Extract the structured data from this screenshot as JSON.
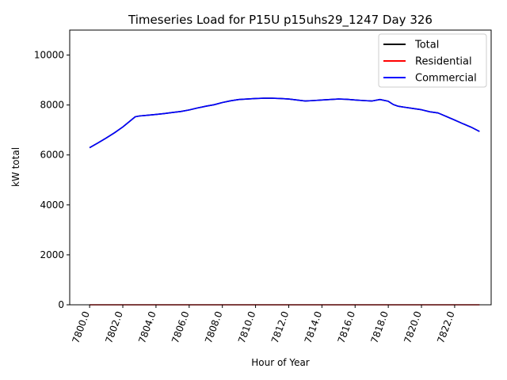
{
  "chart_data": {
    "type": "line",
    "title": "Timeseries Load for P15U p15uhs29_1247  Day 326",
    "xlabel": "Hour of Year",
    "ylabel": "kW total",
    "xlim": [
      7798.8,
      7824.2
    ],
    "ylim": [
      0,
      11000
    ],
    "xticks": [
      7800,
      7802,
      7804,
      7806,
      7808,
      7810,
      7812,
      7814,
      7816,
      7818,
      7820,
      7822
    ],
    "xtick_labels": [
      "7800.0",
      "7802.0",
      "7804.0",
      "7806.0",
      "7808.0",
      "7810.0",
      "7812.0",
      "7814.0",
      "7816.0",
      "7818.0",
      "7820.0",
      "7822.0"
    ],
    "yticks": [
      0,
      2000,
      4000,
      6000,
      8000,
      10000
    ],
    "ytick_labels": [
      "0",
      "2000",
      "4000",
      "6000",
      "8000",
      "10000"
    ],
    "legend_position": "top-right",
    "series": [
      {
        "name": "Total",
        "color": "#000000",
        "x": [
          7800,
          7800.5,
          7801,
          7801.5,
          7802,
          7802.4,
          7802.75,
          7803,
          7803.5,
          7804,
          7804.5,
          7805,
          7805.5,
          7806,
          7806.5,
          7807,
          7807.5,
          7808,
          7808.5,
          7809,
          7809.5,
          7810,
          7810.5,
          7811,
          7811.5,
          7812,
          7812.5,
          7813,
          7813.5,
          7814,
          7814.5,
          7815,
          7815.5,
          7816,
          7816.5,
          7817,
          7817.5,
          7818,
          7818.3,
          7818.6,
          7819,
          7819.5,
          7820,
          7820.5,
          7821,
          7821.5,
          7822,
          7822.5,
          7823,
          7823.5
        ],
        "values": [
          6290,
          6480,
          6680,
          6890,
          7120,
          7340,
          7530,
          7560,
          7590,
          7620,
          7660,
          7700,
          7740,
          7800,
          7880,
          7950,
          8010,
          8100,
          8170,
          8220,
          8240,
          8260,
          8270,
          8270,
          8260,
          8240,
          8200,
          8160,
          8180,
          8200,
          8220,
          8240,
          8230,
          8200,
          8180,
          8160,
          8220,
          8150,
          8020,
          7950,
          7910,
          7860,
          7810,
          7730,
          7680,
          7540,
          7400,
          7250,
          7110,
          6940
        ]
      },
      {
        "name": "Residential",
        "color": "#ff0000",
        "x": [
          7800,
          7823.5
        ],
        "values": [
          0,
          0
        ]
      },
      {
        "name": "Commercial",
        "color": "#0000ff",
        "x": [
          7800,
          7800.5,
          7801,
          7801.5,
          7802,
          7802.4,
          7802.75,
          7803,
          7803.5,
          7804,
          7804.5,
          7805,
          7805.5,
          7806,
          7806.5,
          7807,
          7807.5,
          7808,
          7808.5,
          7809,
          7809.5,
          7810,
          7810.5,
          7811,
          7811.5,
          7812,
          7812.5,
          7813,
          7813.5,
          7814,
          7814.5,
          7815,
          7815.5,
          7816,
          7816.5,
          7817,
          7817.5,
          7818,
          7818.3,
          7818.6,
          7819,
          7819.5,
          7820,
          7820.5,
          7821,
          7821.5,
          7822,
          7822.5,
          7823,
          7823.5
        ],
        "values": [
          6290,
          6480,
          6680,
          6890,
          7120,
          7340,
          7530,
          7560,
          7590,
          7620,
          7660,
          7700,
          7740,
          7800,
          7880,
          7950,
          8010,
          8100,
          8170,
          8220,
          8240,
          8260,
          8270,
          8270,
          8260,
          8240,
          8200,
          8160,
          8180,
          8200,
          8220,
          8240,
          8230,
          8200,
          8180,
          8160,
          8220,
          8150,
          8020,
          7950,
          7910,
          7860,
          7810,
          7730,
          7680,
          7540,
          7400,
          7250,
          7110,
          6940
        ]
      }
    ]
  }
}
